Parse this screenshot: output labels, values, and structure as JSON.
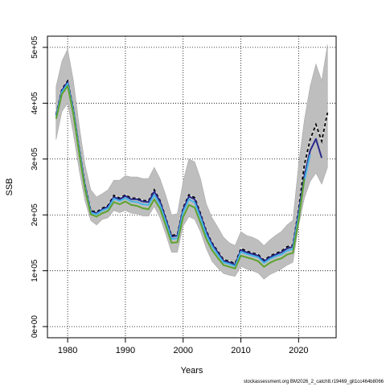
{
  "chart_data": {
    "type": "line",
    "xlabel": "Years",
    "ylabel": "SSB",
    "xlim": [
      1976.5,
      2026.5
    ],
    "ylim": [
      -20000,
      520000
    ],
    "x_ticks": [
      1980,
      1990,
      2000,
      2010,
      2020
    ],
    "x_tick_labels": [
      "1980",
      "1990",
      "2000",
      "2010",
      "2020"
    ],
    "y_ticks": [
      0,
      100000,
      200000,
      300000,
      400000,
      500000
    ],
    "y_tick_labels": [
      "0e+00",
      "1e+05",
      "2e+05",
      "3e+05",
      "4e+05",
      "5e+05"
    ],
    "grid": true,
    "grid_style": "dotted",
    "colors": {
      "band": "#bebebe",
      "band_edge": "#a8a8a8",
      "navy": "#2a2a8c",
      "cyan": "#45b4e6",
      "green": "#5ea22e",
      "dashed": "#000000",
      "dashed_under": "#d8d8d8"
    },
    "band": {
      "x": [
        1978,
        1979,
        1980,
        1981,
        1982,
        1983,
        1984,
        1985,
        1986,
        1987,
        1988,
        1989,
        1990,
        1991,
        1992,
        1993,
        1994,
        1995,
        1996,
        1997,
        1998,
        1999,
        2000,
        2001,
        2002,
        2003,
        2004,
        2005,
        2006,
        2007,
        2008,
        2009,
        2010,
        2011,
        2012,
        2013,
        2014,
        2015,
        2016,
        2017,
        2018,
        2019,
        2020,
        2021,
        2022,
        2023,
        2024,
        2025
      ],
      "upper": [
        430000,
        475000,
        497000,
        440000,
        360000,
        290000,
        245000,
        232000,
        238000,
        245000,
        262000,
        262000,
        270000,
        268000,
        268000,
        265000,
        265000,
        285000,
        265000,
        235000,
        200000,
        202000,
        260000,
        300000,
        295000,
        265000,
        220000,
        195000,
        178000,
        160000,
        150000,
        145000,
        170000,
        163000,
        160000,
        155000,
        145000,
        155000,
        163000,
        170000,
        182000,
        190000,
        290000,
        370000,
        430000,
        470000,
        440000,
        505000
      ],
      "lower": [
        335000,
        385000,
        400000,
        345000,
        280000,
        225000,
        190000,
        182000,
        192000,
        195000,
        208000,
        204000,
        208000,
        203000,
        202000,
        198000,
        198000,
        215000,
        195000,
        165000,
        133000,
        133000,
        180000,
        197000,
        192000,
        170000,
        140000,
        117000,
        105000,
        95000,
        92000,
        90000,
        108000,
        103000,
        100000,
        96000,
        85000,
        93000,
        98000,
        103000,
        110000,
        115000,
        180000,
        230000,
        260000,
        275000,
        255000,
        285000
      ]
    },
    "series": [
      {
        "color_key": "dashed",
        "style": "dashed",
        "x": [
          1978,
          1979,
          1980,
          1981,
          1982,
          1983,
          1984,
          1985,
          1986,
          1987,
          1988,
          1989,
          1990,
          1991,
          1992,
          1993,
          1994,
          1995,
          1996,
          1997,
          1998,
          1999,
          2000,
          2001,
          2002,
          2003,
          2004,
          2005,
          2006,
          2007,
          2008,
          2009,
          2010,
          2011,
          2012,
          2013,
          2014,
          2015,
          2016,
          2017,
          2018,
          2019,
          2020,
          2021,
          2022,
          2023,
          2024,
          2025
        ],
        "y": [
          380000,
          425000,
          440000,
          390000,
          320000,
          255000,
          208000,
          205000,
          212000,
          217000,
          235000,
          230000,
          236000,
          230000,
          230000,
          226000,
          225000,
          245000,
          226000,
          195000,
          163000,
          165000,
          213000,
          236000,
          231000,
          203000,
          172000,
          150000,
          135000,
          120000,
          117000,
          113000,
          140000,
          135000,
          132000,
          129000,
          119000,
          126000,
          131000,
          135000,
          143000,
          146000,
          210000,
          290000,
          335000,
          362000,
          332000,
          383000
        ]
      },
      {
        "color_key": "navy",
        "style": "solid",
        "x": [
          1978,
          1979,
          1980,
          1981,
          1982,
          1983,
          1984,
          1985,
          1986,
          1987,
          1988,
          1989,
          1990,
          1991,
          1992,
          1993,
          1994,
          1995,
          1996,
          1997,
          1998,
          1999,
          2000,
          2001,
          2002,
          2003,
          2004,
          2005,
          2006,
          2007,
          2008,
          2009,
          2010,
          2011,
          2012,
          2013,
          2014,
          2015,
          2016,
          2017,
          2018,
          2019,
          2020,
          2021,
          2022,
          2023,
          2024
        ],
        "y": [
          378000,
          423000,
          438000,
          388000,
          318000,
          253000,
          206000,
          203000,
          210000,
          215000,
          232000,
          228000,
          234000,
          228000,
          228000,
          224000,
          223000,
          242000,
          224000,
          193000,
          161000,
          163000,
          210000,
          233000,
          228000,
          200000,
          170000,
          148000,
          133000,
          118000,
          115000,
          111000,
          137000,
          133000,
          130000,
          127000,
          117000,
          124000,
          129000,
          133000,
          140000,
          143000,
          205000,
          270000,
          315000,
          336000,
          302000
        ]
      },
      {
        "color_key": "cyan",
        "style": "solid",
        "x": [
          1978,
          1979,
          1980,
          1981,
          1982,
          1983,
          1984,
          1985,
          1986,
          1987,
          1988,
          1989,
          1990,
          1991,
          1992,
          1993,
          1994,
          1995,
          1996,
          1997,
          1998,
          1999,
          2000,
          2001,
          2002,
          2003,
          2004,
          2005,
          2006,
          2007,
          2008,
          2009,
          2010,
          2011,
          2012,
          2013,
          2014,
          2015,
          2016,
          2017,
          2018,
          2019,
          2020,
          2021,
          2022
        ],
        "y": [
          376000,
          420000,
          435000,
          385000,
          315000,
          250000,
          204000,
          201000,
          208000,
          212000,
          229000,
          225000,
          230000,
          224000,
          223000,
          219000,
          218000,
          236000,
          218000,
          188000,
          157000,
          158000,
          205000,
          228000,
          222000,
          195000,
          165000,
          144000,
          129000,
          115000,
          112000,
          108000,
          134000,
          130000,
          127000,
          124000,
          114000,
          121000,
          126000,
          129000,
          136000,
          139000,
          198000,
          262000,
          308000
        ]
      },
      {
        "color_key": "green",
        "style": "solid",
        "x": [
          1978,
          1979,
          1980,
          1981,
          1982,
          1983,
          1984,
          1985,
          1986,
          1987,
          1988,
          1989,
          1990,
          1991,
          1992,
          1993,
          1994,
          1995,
          1996,
          1997,
          1998,
          1999,
          2000,
          2001,
          2002,
          2003,
          2004,
          2005,
          2006,
          2007,
          2008,
          2009,
          2010,
          2011,
          2012,
          2013,
          2014,
          2015,
          2016,
          2017,
          2018,
          2019,
          2020,
          2021
        ],
        "y": [
          372000,
          416000,
          431000,
          380000,
          310000,
          246000,
          201000,
          197000,
          203000,
          207000,
          223000,
          219000,
          224000,
          218000,
          216000,
          212000,
          210000,
          228000,
          211000,
          181000,
          150000,
          151000,
          196000,
          218000,
          213000,
          186000,
          157000,
          137000,
          123000,
          110000,
          107000,
          104000,
          127000,
          124000,
          121000,
          117000,
          107000,
          114000,
          119000,
          122000,
          129000,
          132000,
          190000,
          265000
        ]
      }
    ],
    "footer": "stockassessment.org BM2026_2_catch8.r19469_git1cc464b8066"
  }
}
